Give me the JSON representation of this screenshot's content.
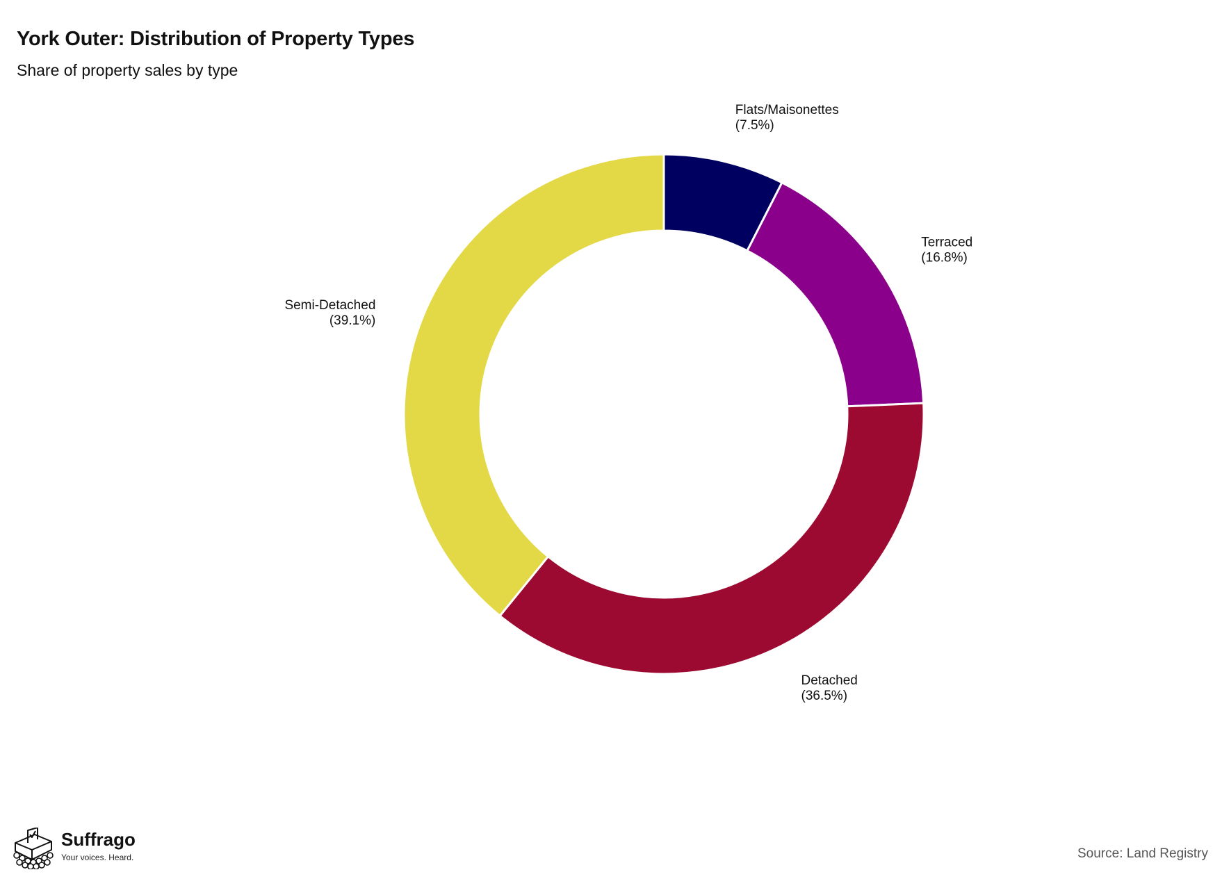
{
  "title": "York Outer: Distribution of Property Types",
  "subtitle": "Share of property sales by type",
  "source": "Source: Land Registry",
  "logo": {
    "name": "Suffrago",
    "tagline": "Your voices. Heard."
  },
  "chart_data": {
    "type": "pie",
    "variant": "donut",
    "title": "York Outer: Distribution of Property Types",
    "subtitle": "Share of property sales by type",
    "unit": "%",
    "slices": [
      {
        "label": "Flats/Maisonettes",
        "value": 7.5,
        "display": "(7.5%)",
        "color": "#000060"
      },
      {
        "label": "Terraced",
        "value": 16.8,
        "display": "(16.8%)",
        "color": "#8b008b"
      },
      {
        "label": "Detached",
        "value": 36.5,
        "display": "(36.5%)",
        "color": "#9d0a31"
      },
      {
        "label": "Semi-Detached",
        "value": 39.1,
        "display": "(39.1%)",
        "color": "#e3d845"
      }
    ]
  }
}
